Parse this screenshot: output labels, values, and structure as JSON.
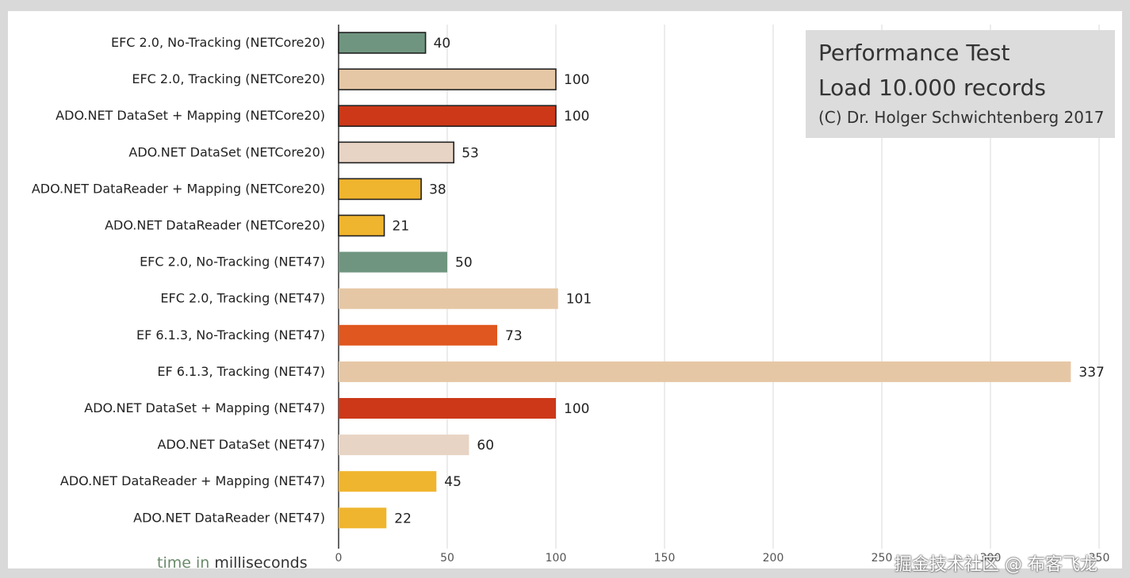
{
  "chart_data": {
    "type": "bar",
    "orientation": "horizontal",
    "title": "Performance Test",
    "subtitle": "Load 10.000 records",
    "credit": "(C) Dr. Holger Schwichtenberg 2017",
    "xlabel_prefix": "time in ",
    "xlabel_unit": "milliseconds",
    "xlim": [
      0,
      350
    ],
    "xticks": [
      "0",
      "50",
      "100",
      "150",
      "200",
      "250",
      "300",
      "350"
    ],
    "grid": true,
    "categories": [
      "EFC 2.0, No-Tracking (NETCore20)",
      "EFC 2.0, Tracking (NETCore20)",
      "ADO.NET DataSet + Mapping (NETCore20)",
      "ADO.NET DataSet (NETCore20)",
      "ADO.NET DataReader + Mapping (NETCore20)",
      "ADO.NET DataReader (NETCore20)",
      "EFC 2.0, No-Tracking (NET47)",
      "EFC 2.0, Tracking (NET47)",
      "EF 6.1.3, No-Tracking (NET47)",
      "EF 6.1.3, Tracking (NET47)",
      "ADO.NET DataSet + Mapping (NET47)",
      "ADO.NET DataSet (NET47)",
      "ADO.NET DataReader + Mapping (NET47)",
      "ADO.NET DataReader (NET47)"
    ],
    "values": [
      40,
      100,
      100,
      53,
      38,
      21,
      50,
      101,
      73,
      337,
      100,
      60,
      45,
      22
    ],
    "bar_colors": [
      "#6f9580",
      "#e6c7a5",
      "#cc3818",
      "#e8d4c4",
      "#f0b52e",
      "#f0b52e",
      "#6f9580",
      "#e6c7a5",
      "#e0571f",
      "#e6c7a5",
      "#cc3818",
      "#e8d4c4",
      "#f0b52e",
      "#f0b52e"
    ],
    "bar_outlined": [
      true,
      true,
      true,
      true,
      true,
      true,
      false,
      false,
      false,
      false,
      false,
      false,
      false,
      false
    ]
  },
  "watermark": "掘金技术社区 @ 布客飞龙"
}
